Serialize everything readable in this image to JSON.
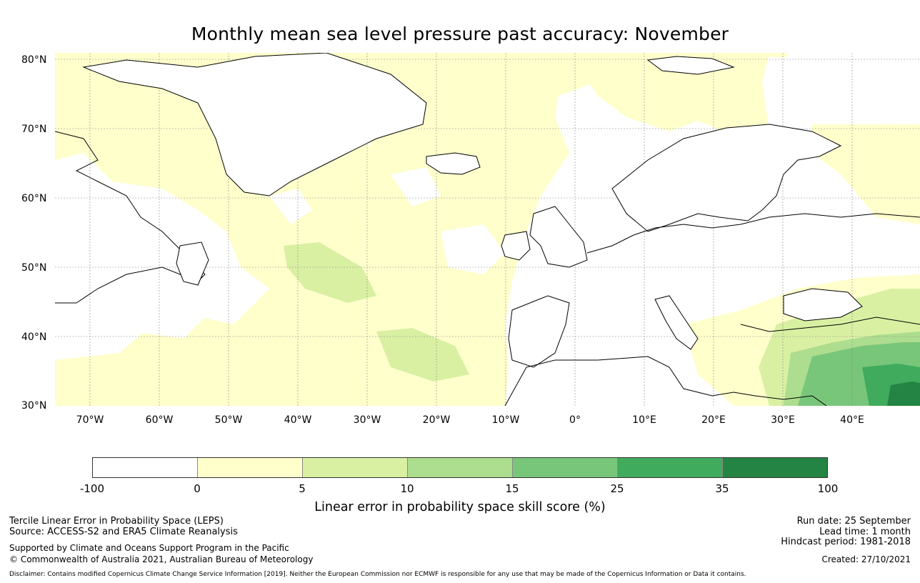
{
  "title": "Monthly mean sea level pressure past accuracy: November",
  "map": {
    "lat_labels": [
      "80°N",
      "70°N",
      "60°N",
      "50°N",
      "40°N",
      "30°N"
    ],
    "lon_labels": [
      "70°W",
      "60°W",
      "50°W",
      "40°W",
      "30°W",
      "20°W",
      "10°W",
      "0°",
      "10°E",
      "20°E",
      "30°E",
      "40°E"
    ],
    "region": "North Atlantic and Europe, 75°W–50°E, 29°N–81°N"
  },
  "colorbar": {
    "label": "Linear error in probability space skill score (%)",
    "ticks": [
      "-100",
      "0",
      "5",
      "10",
      "15",
      "25",
      "35",
      "100"
    ],
    "colors": [
      "#ffffff",
      "#ffffcc",
      "#d9f0a3",
      "#addd8e",
      "#78c679",
      "#41ab5d",
      "#238443"
    ]
  },
  "footer": {
    "left_line1": "Tercile Linear Error in Probability Space (LEPS)",
    "left_line2": "Source: ACCESS-S2 and ERA5 Climate Reanalysis",
    "left_line3": "Supported by Climate and Oceans Support Program in the Pacific",
    "left_line4": "© Commonwealth of Australia 2021, Australian Bureau of Meteorology",
    "right_line1": "Run date: 25 September",
    "right_line2": "Lead time: 1 month",
    "right_line3": "Hindcast period: 1981-2018",
    "right_line4": "Created: 27/10/2021",
    "disclaimer": "Disclaimer: Contains modified Copernicus Climate Change Service Information [2019]. Neither the European Commission nor ECMWF is responsible for any use that may be made of the Copernicus Information or Data it contains."
  }
}
